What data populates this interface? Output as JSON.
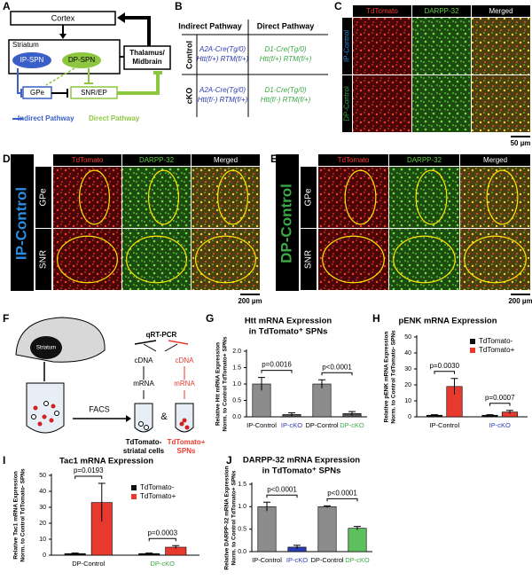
{
  "panel_labels": [
    "A",
    "B",
    "C",
    "D",
    "E",
    "F",
    "G",
    "H",
    "I",
    "J"
  ],
  "a": {
    "cortex": "Cortex",
    "striatum": "Striatum",
    "ip_spn": "IP-SPN",
    "dp_spn": "DP-SPN",
    "thalamus": [
      "Thalamus/",
      "Midbrain"
    ],
    "gpe": "GPe",
    "snr": "SNR/EP",
    "legend_indirect": "Indirect Pathway",
    "legend_direct": "Direct Pathway"
  },
  "b": {
    "headers": [
      "Indirect Pathway",
      "Direct Pathway"
    ],
    "rows": [
      {
        "label": "Control",
        "cells": [
          [
            "A2A-Cre(Tg/0)",
            "Htt(f/+) RTM(f/+)"
          ],
          [
            "D1-Cre(Tg/0)",
            "Htt(f/+) RTM(f/+)"
          ]
        ]
      },
      {
        "label": "cKO",
        "cells": [
          [
            "A2A-Cre(Tg/0)",
            "Htt(f/-) RTM(f/+)"
          ],
          [
            "D1-Cre(Tg/0)",
            "Htt(f/-) RTM(f/+)"
          ]
        ]
      }
    ]
  },
  "c": {
    "columns": [
      "TdTomato",
      "DARPP-32",
      "Merged"
    ],
    "rows": [
      "IP-Control",
      "DP-Control"
    ],
    "scale": "50 µm"
  },
  "d": {
    "group": "IP-Control",
    "columns": [
      "TdTomato",
      "DARPP-32",
      "Merged"
    ],
    "rows": [
      "GPe",
      "SNR"
    ],
    "scale": "200 µm"
  },
  "e": {
    "group": "DP-Control",
    "columns": [
      "TdTomato",
      "DARPP-32",
      "Merged"
    ],
    "rows": [
      "GPe",
      "SNR"
    ],
    "scale": "200 µm"
  },
  "f": {
    "striatum": "Striatum",
    "qrt": "qRT-PCR",
    "left_steps": [
      "cDNA",
      "mRNA"
    ],
    "right_steps": [
      "cDNA",
      "mRNA"
    ],
    "facs": "FACS",
    "amp": "&",
    "left_label": [
      "TdTomato-",
      "striatal cells"
    ],
    "right_label": [
      "TdTomato+",
      "SPNs"
    ]
  },
  "chart_data": [
    {
      "type": "bar",
      "title": "Htt mRNA Expression",
      "subtitle": "in TdTomato⁺ SPNs",
      "ylabel": [
        "Relative Htt mRNA Expression",
        "Norm. to Control TdTomato+ SPNs"
      ],
      "categories": [
        "IP-Control",
        "IP-cKO",
        "DP-Control",
        "DP-cKO"
      ],
      "category_colors": [
        "#000000",
        "#2b3cb0",
        "#000000",
        "#3aa845"
      ],
      "values": [
        1.0,
        0.07,
        1.0,
        0.1
      ],
      "errors": [
        0.2,
        0.05,
        0.13,
        0.06
      ],
      "colors": [
        "#8c8c8c",
        "#555555",
        "#8c8c8c",
        "#555555"
      ],
      "ylim": [
        0,
        2
      ],
      "yticks": [
        {
          "value": 0,
          "label": "0.0"
        },
        {
          "value": 0.5,
          "label": "0.5"
        },
        {
          "value": 1,
          "label": "1.0"
        },
        {
          "value": 1.5,
          "label": "1.5"
        },
        {
          "value": 2,
          "label": "2.0"
        }
      ],
      "annotations": [
        "p=0.0016",
        "p<0.0001"
      ]
    },
    {
      "type": "grouped-bar",
      "title": "pENK mRNA Expression",
      "ylabel": [
        "Relative pENK mRNA Expression",
        "Norm. to Control TdTomato- SPNs"
      ],
      "categories": [
        "IP-Control",
        "IP-cKO"
      ],
      "category_colors": [
        "#000000",
        "#2b3cb0"
      ],
      "series": [
        {
          "name": "TdTomato-",
          "color": "#111111",
          "values": [
            1.0,
            1.0
          ],
          "errors": [
            0.3,
            0.3
          ]
        },
        {
          "name": "TdTomato+",
          "color": "#e8392f",
          "values": [
            19,
            3.0
          ],
          "errors": [
            5,
            1
          ]
        }
      ],
      "ylim": [
        0,
        50
      ],
      "yticks": [
        0,
        10,
        20,
        30,
        40,
        50
      ],
      "annotations": [
        "p=0.0030",
        "p=0.0007"
      ]
    },
    {
      "type": "grouped-bar",
      "title": "Tac1 mRNA Expression",
      "ylabel": [
        "Relative Tac1 mRNA Expression",
        "Norm. to Control TdTomato- SPNs"
      ],
      "categories": [
        "DP-Control",
        "DP-cKO"
      ],
      "category_colors": [
        "#000000",
        "#3aa845"
      ],
      "series": [
        {
          "name": "TdTomato-",
          "color": "#111111",
          "values": [
            1.0,
            1.0
          ],
          "errors": [
            0.3,
            0.3
          ]
        },
        {
          "name": "TdTomato+",
          "color": "#e8392f",
          "values": [
            33,
            5
          ],
          "errors": [
            12,
            1
          ]
        }
      ],
      "ylim": [
        0,
        50
      ],
      "yticks": [
        0,
        10,
        20,
        30,
        40,
        50
      ],
      "annotations": [
        "p=0.0193",
        "p=0.0003"
      ]
    },
    {
      "type": "bar",
      "title": "DARPP-32 mRNA Expression",
      "subtitle": "in TdTomato⁺ SPNs",
      "ylabel": [
        "Relative DARPP-32 mRNA Expression",
        "Norm. to Control TdTomato+ SPNs"
      ],
      "categories": [
        "IP-Control",
        "IP-cKO",
        "DP-Control",
        "DP-cKO"
      ],
      "category_colors": [
        "#000000",
        "#2b3cb0",
        "#000000",
        "#3aa845"
      ],
      "values": [
        1.0,
        0.1,
        1.0,
        0.52
      ],
      "errors": [
        0.1,
        0.04,
        0.02,
        0.04
      ],
      "colors": [
        "#8c8c8c",
        "#2b3cb0",
        "#8c8c8c",
        "#5cc05c"
      ],
      "ylim": [
        0,
        1.5
      ],
      "yticks": [
        {
          "value": 0,
          "label": "0.0"
        },
        {
          "value": 0.5,
          "label": "0.5"
        },
        {
          "value": 1,
          "label": "1.0"
        },
        {
          "value": 1.5,
          "label": "1.5"
        }
      ],
      "annotations": [
        "p<0.0001",
        "p<0.0001"
      ]
    }
  ]
}
